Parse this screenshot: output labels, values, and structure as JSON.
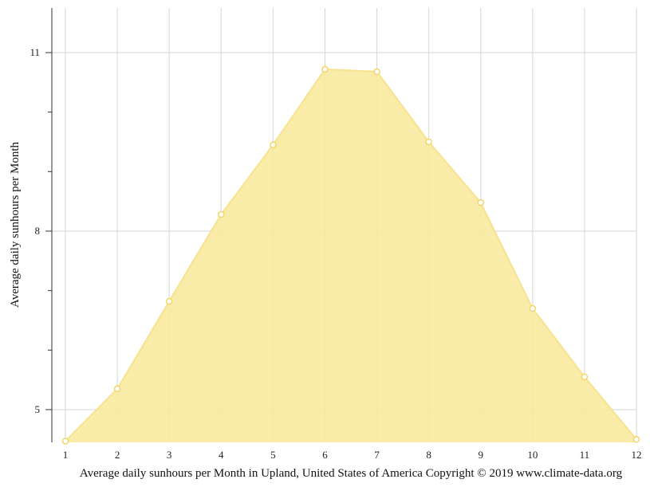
{
  "chart_data": {
    "type": "area",
    "title": "",
    "caption": "Average daily sunhours per Month in Upland, United States of America Copyright © 2019 www.climate-data.org",
    "xlabel": "",
    "ylabel": "Average daily sunhours per Month",
    "x": [
      1,
      2,
      3,
      4,
      5,
      6,
      7,
      8,
      9,
      10,
      11,
      12
    ],
    "x_ticks": [
      "1",
      "2",
      "3",
      "4",
      "5",
      "6",
      "7",
      "8",
      "9",
      "10",
      "11",
      "12"
    ],
    "y_ticks": [
      "5",
      "8",
      "11"
    ],
    "y_tick_values": [
      5,
      8,
      11
    ],
    "y_minor_tick_values": [
      6,
      7,
      9,
      10
    ],
    "xlim": [
      1,
      12
    ],
    "ylim": [
      4.45,
      11.75
    ],
    "grid": true,
    "series": [
      {
        "values": [
          4.47,
          5.35,
          6.82,
          8.28,
          9.45,
          10.72,
          10.68,
          9.5,
          8.48,
          6.7,
          5.55,
          4.5
        ]
      }
    ],
    "colors": {
      "fill": "#f8e99f",
      "line": "#f7e38f",
      "marker_stroke": "#f2d66b",
      "marker_fill": "#ffffff",
      "grid": "#d6d6d6",
      "axis": "#333333"
    }
  }
}
